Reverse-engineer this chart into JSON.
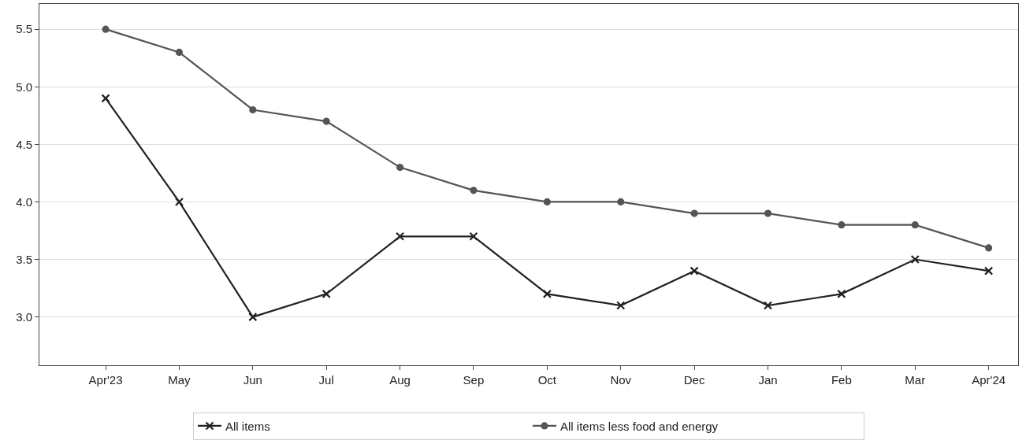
{
  "chart_data": {
    "type": "line",
    "categories": [
      "Apr'23",
      "May",
      "Jun",
      "Jul",
      "Aug",
      "Sep",
      "Oct",
      "Nov",
      "Dec",
      "Jan",
      "Feb",
      "Mar",
      "Apr'24"
    ],
    "series": [
      {
        "name": "All items",
        "color": "#222222",
        "marker": "cross",
        "values": [
          4.9,
          4.0,
          3.0,
          3.2,
          3.7,
          3.7,
          3.2,
          3.1,
          3.4,
          3.1,
          3.2,
          3.5,
          3.4
        ]
      },
      {
        "name": "All items less food and energy",
        "color": "#555555",
        "marker": "circle",
        "values": [
          5.5,
          5.3,
          4.8,
          4.7,
          4.3,
          4.1,
          4.0,
          4.0,
          3.9,
          3.9,
          3.8,
          3.8,
          3.6
        ]
      }
    ],
    "ylim": [
      2.58,
      5.72
    ],
    "yticks": [
      {
        "value": 3.0,
        "label": "3.0"
      },
      {
        "value": 3.5,
        "label": "3.5"
      },
      {
        "value": 4.0,
        "label": "4.0"
      },
      {
        "value": 4.5,
        "label": "4.5"
      },
      {
        "value": 5.0,
        "label": "5.0"
      },
      {
        "value": 5.5,
        "label": "5.5"
      }
    ],
    "grid": "y",
    "legend": "bottom",
    "line_style": "solid"
  }
}
